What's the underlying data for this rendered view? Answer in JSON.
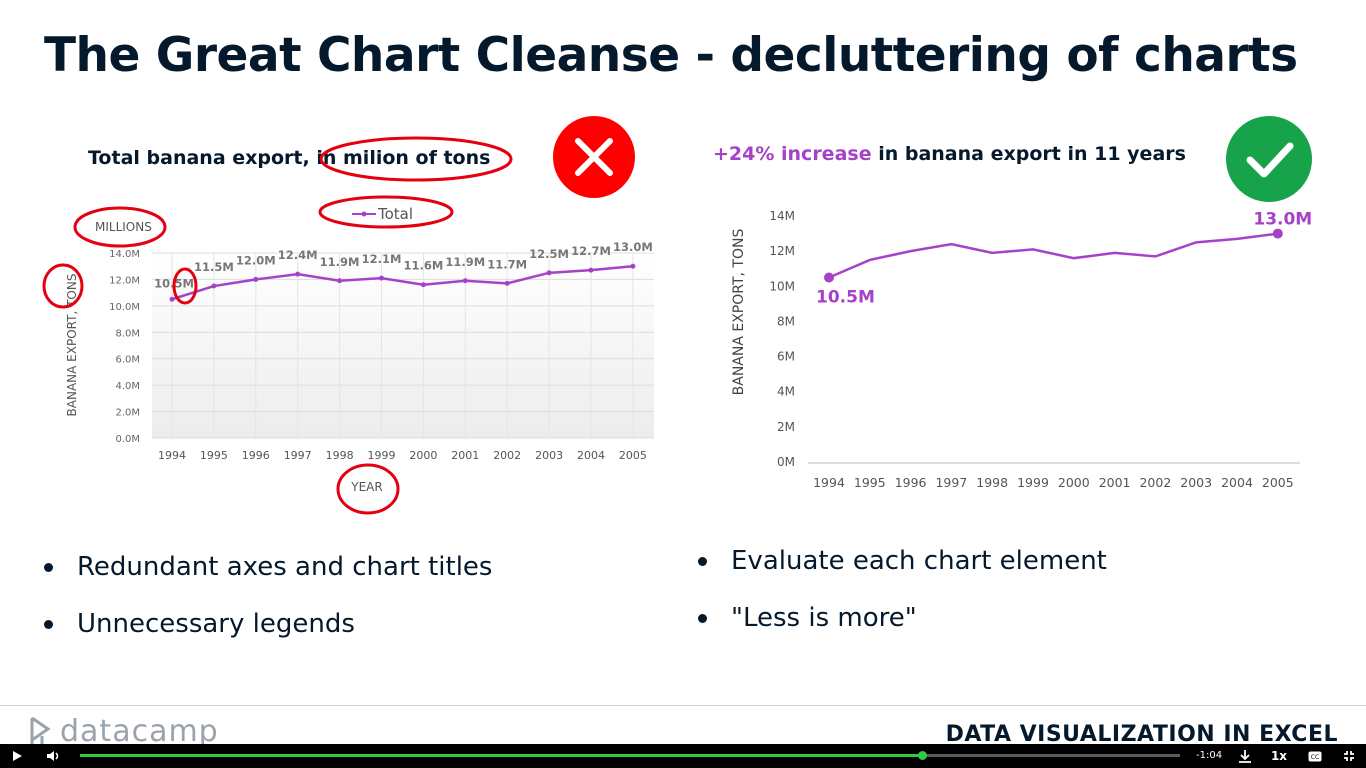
{
  "slide": {
    "title": "The Great Chart Cleanse - decluttering of charts"
  },
  "colors": {
    "line": "#a542c8",
    "annotation_red": "#e3000f",
    "bad_badge": "#ff0000",
    "good_badge": "#17a34a",
    "text_dark": "#05192d",
    "gridline": "#dcdcdc"
  },
  "icons": {
    "bad_badge": "x-mark-icon",
    "good_badge": "checkmark-icon",
    "logo": "datacamp-logo-icon"
  },
  "left_chart": {
    "title_prefix": "Total banana export,",
    "title_suffix": " in milion of tons",
    "legend": "Total",
    "axis_unit_label": "MILLIONS",
    "ylabel": "BANANA EXPORT, TONS",
    "xlabel": "YEAR",
    "yticks": [
      "0.0M",
      "2.0M",
      "4.0M",
      "6.0M",
      "8.0M",
      "10.0M",
      "12.0M",
      "14.0M"
    ],
    "data_labels": [
      "10.5M",
      "11.5M",
      "12.0M",
      "12.4M",
      "11.9M",
      "12.1M",
      "11.6M",
      "11.9M",
      "11.7M",
      "12.5M",
      "12.7M",
      "13.0M"
    ]
  },
  "right_chart": {
    "headline_highlight": "+24% increase",
    "headline_rest": " in banana export in 11 years",
    "ylabel": "BANANA EXPORT, TONS",
    "yticks": [
      "0M",
      "2M",
      "4M",
      "6M",
      "8M",
      "10M",
      "12M",
      "14M"
    ],
    "start_label": "10.5M",
    "end_label": "13.0M"
  },
  "chart_data": [
    {
      "type": "line",
      "title": "Total banana export, in milion of tons",
      "xlabel": "YEAR",
      "ylabel": "BANANA EXPORT, TONS",
      "categories": [
        "1994",
        "1995",
        "1996",
        "1997",
        "1998",
        "1999",
        "2000",
        "2001",
        "2002",
        "2003",
        "2004",
        "2005"
      ],
      "series": [
        {
          "name": "Total",
          "values": [
            10.5,
            11.5,
            12.0,
            12.4,
            11.9,
            12.1,
            11.6,
            11.9,
            11.7,
            12.5,
            12.7,
            13.0
          ]
        }
      ],
      "ylim": [
        0,
        14
      ],
      "grid": true,
      "legend": "top"
    },
    {
      "type": "line",
      "title": "+24% increase in banana export in 11 years",
      "xlabel": "",
      "ylabel": "BANANA EXPORT, TONS",
      "categories": [
        "1994",
        "1995",
        "1996",
        "1997",
        "1998",
        "1999",
        "2000",
        "2001",
        "2002",
        "2003",
        "2004",
        "2005"
      ],
      "series": [
        {
          "values": [
            10.5,
            11.5,
            12.0,
            12.4,
            11.9,
            12.1,
            11.6,
            11.9,
            11.7,
            12.5,
            12.7,
            13.0
          ]
        }
      ],
      "ylim": [
        0,
        14
      ],
      "grid": false
    }
  ],
  "bullets_left": [
    "Redundant axes and chart titles",
    "Unnecessary legends"
  ],
  "bullets_right": [
    "Evaluate each chart element",
    "\"Less is more\""
  ],
  "footer": {
    "logo_text": "datacamp",
    "course": "DATA VISUALIZATION IN EXCEL"
  },
  "player": {
    "time_remaining": "-1:04",
    "speed": "1x",
    "progress": 0.765
  }
}
